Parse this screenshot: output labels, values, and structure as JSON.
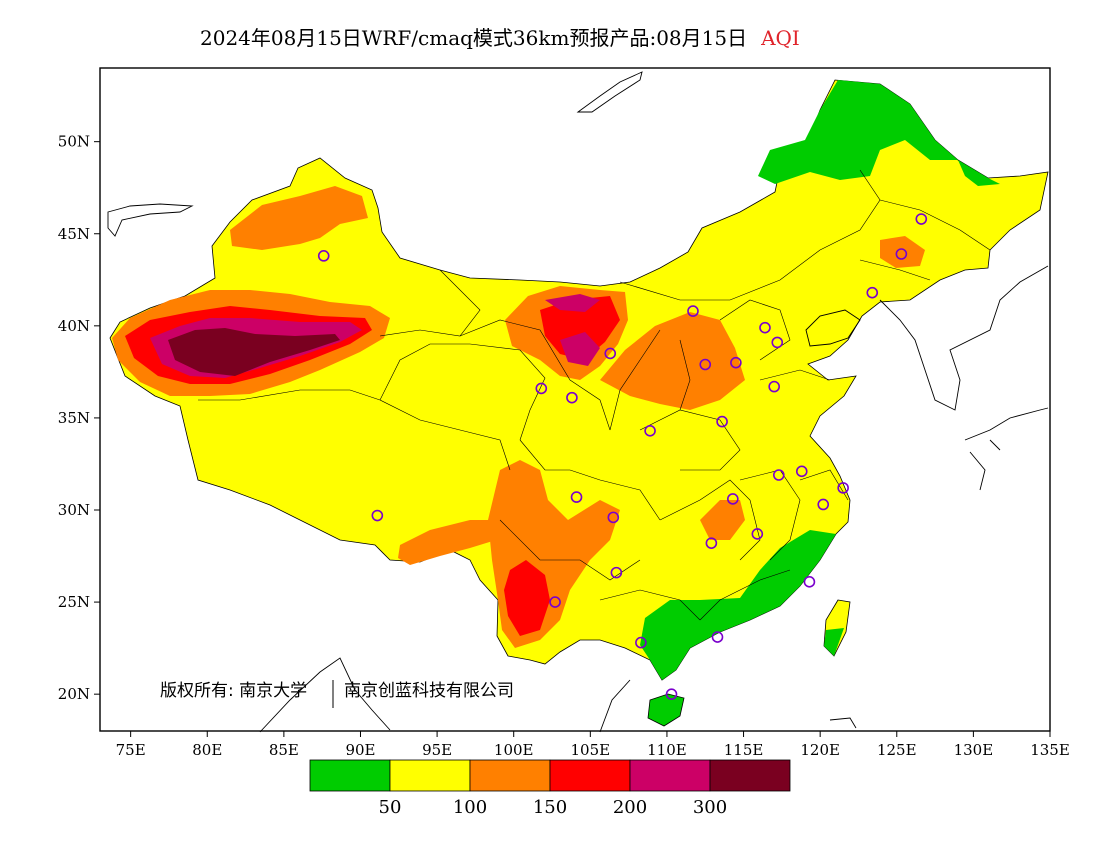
{
  "title": {
    "main": "2024年08月15日WRF/cmaq模式36km预报产品:08月15日",
    "variable": "AQI"
  },
  "axes": {
    "lat_labels": [
      "50N",
      "45N",
      "40N",
      "35N",
      "30N",
      "25N",
      "20N"
    ],
    "lat_values": [
      50,
      45,
      40,
      35,
      30,
      25,
      20
    ],
    "lon_labels": [
      "75E",
      "80E",
      "85E",
      "90E",
      "95E",
      "100E",
      "105E",
      "110E",
      "115E",
      "120E",
      "125E",
      "130E",
      "135E"
    ],
    "lon_values": [
      75,
      80,
      85,
      90,
      95,
      100,
      105,
      110,
      115,
      120,
      125,
      130,
      135
    ],
    "lon_range": [
      73,
      135
    ],
    "lat_range": [
      18,
      54
    ]
  },
  "legend": {
    "colors": [
      "#00cc00",
      "#ffff00",
      "#ff8000",
      "#ff0000",
      "#cc0066",
      "#7a0020"
    ],
    "labels": [
      "50",
      "100",
      "150",
      "200",
      "300"
    ]
  },
  "copyright": {
    "left": "版权所有: 南京大学",
    "right": "南京创蓝科技有限公司"
  },
  "stations": [
    [
      87.6,
      43.8
    ],
    [
      101.8,
      36.6
    ],
    [
      103.8,
      36.1
    ],
    [
      106.3,
      38.5
    ],
    [
      111.7,
      40.8
    ],
    [
      112.5,
      37.9
    ],
    [
      114.5,
      38.0
    ],
    [
      116.4,
      39.9
    ],
    [
      117.2,
      39.1
    ],
    [
      117.0,
      36.7
    ],
    [
      113.6,
      34.8
    ],
    [
      108.9,
      34.3
    ],
    [
      104.1,
      30.7
    ],
    [
      106.5,
      29.6
    ],
    [
      106.7,
      26.6
    ],
    [
      102.7,
      25.0
    ],
    [
      108.3,
      22.8
    ],
    [
      113.3,
      23.1
    ],
    [
      110.3,
      20.0
    ],
    [
      112.9,
      28.2
    ],
    [
      115.9,
      28.7
    ],
    [
      114.3,
      30.6
    ],
    [
      117.3,
      31.9
    ],
    [
      118.8,
      32.1
    ],
    [
      120.2,
      30.3
    ],
    [
      121.5,
      31.2
    ],
    [
      119.3,
      26.1
    ],
    [
      123.4,
      41.8
    ],
    [
      125.3,
      43.9
    ],
    [
      126.6,
      45.8
    ],
    [
      91.1,
      29.7
    ]
  ]
}
